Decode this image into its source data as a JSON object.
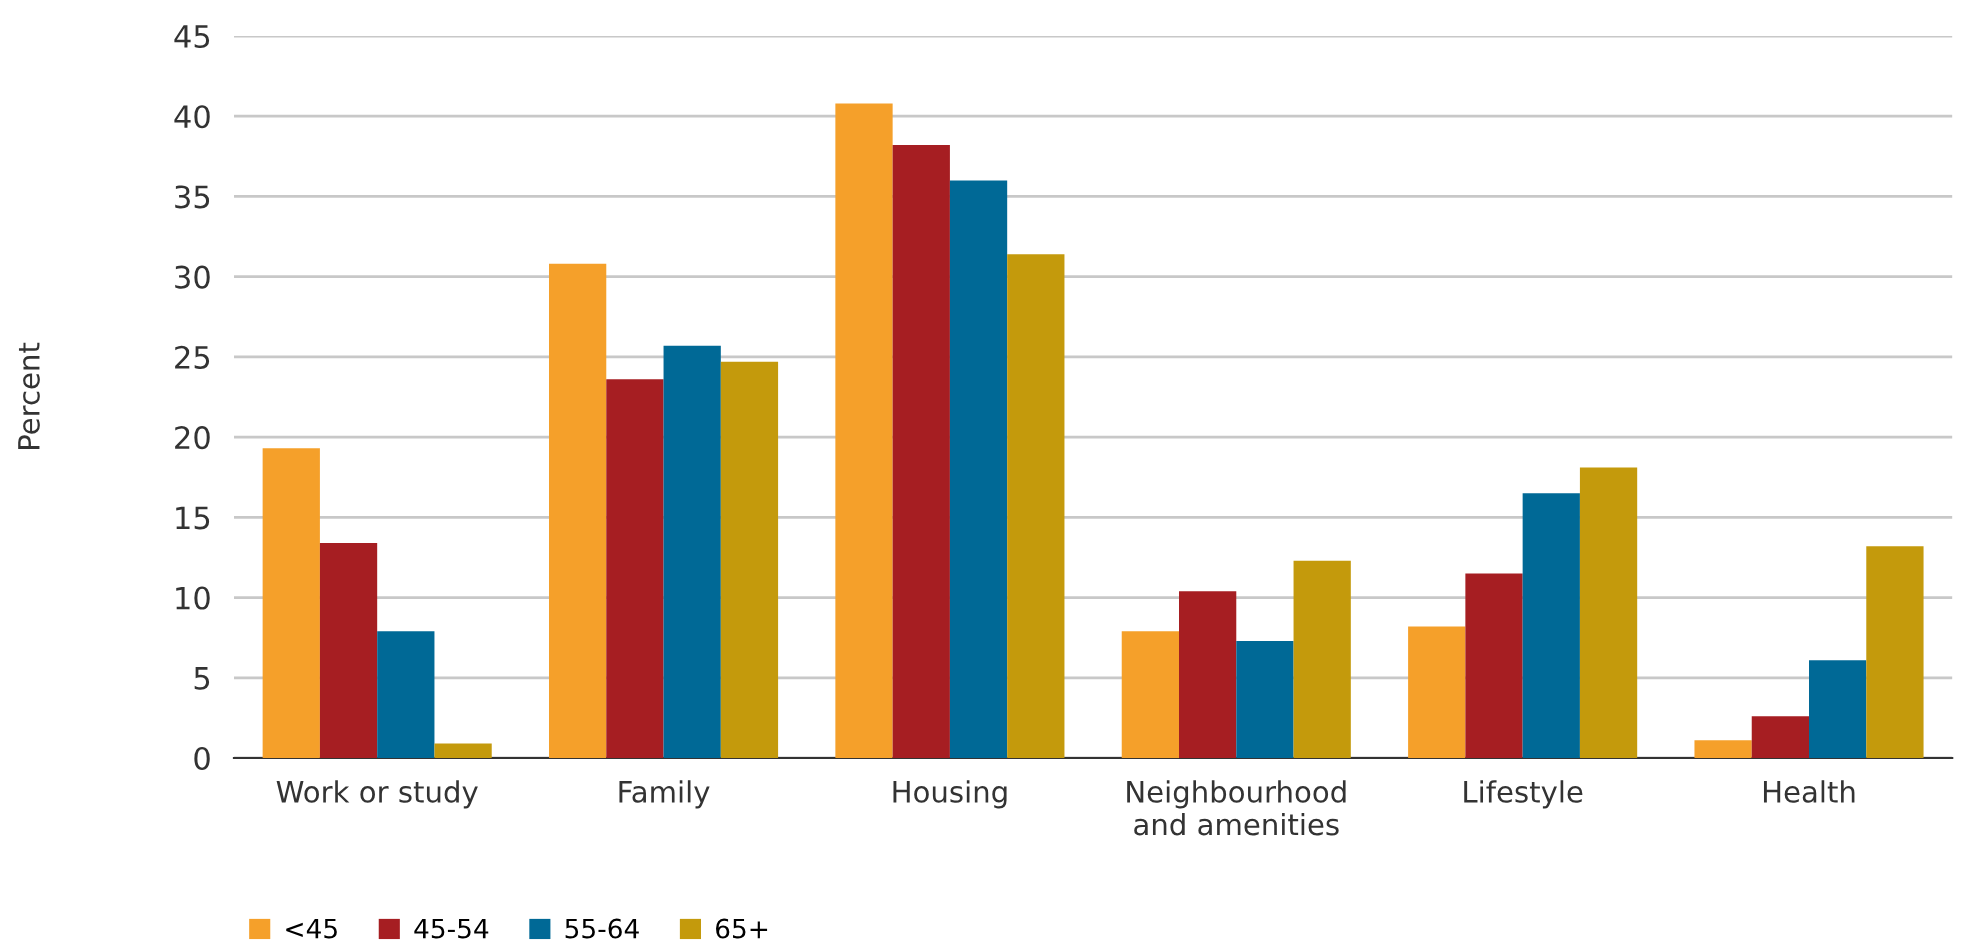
{
  "chart_data": {
    "type": "bar",
    "ylabel": "Percent",
    "categories": [
      "Work or study",
      "Family",
      "Housing",
      "Neighbourhood\nand amenities",
      "Lifestyle",
      "Health"
    ],
    "series": [
      {
        "name": "<45",
        "color": "#f5a02a",
        "values": [
          19.3,
          30.8,
          40.8,
          7.9,
          8.2,
          1.1
        ]
      },
      {
        "name": "45-54",
        "color": "#a61e22",
        "values": [
          13.4,
          23.6,
          38.2,
          10.4,
          11.5,
          2.6
        ]
      },
      {
        "name": "55-64",
        "color": "#006996",
        "values": [
          7.9,
          25.7,
          36.0,
          7.3,
          16.5,
          6.1
        ]
      },
      {
        "name": "65+",
        "color": "#c49a0c",
        "values": [
          0.9,
          24.7,
          31.4,
          12.3,
          18.1,
          13.2
        ]
      }
    ],
    "ylim": [
      0,
      45
    ],
    "yticks": [
      0,
      5,
      10,
      15,
      20,
      25,
      30,
      35,
      40,
      45
    ],
    "grid": "y",
    "legend": "bottom left"
  }
}
